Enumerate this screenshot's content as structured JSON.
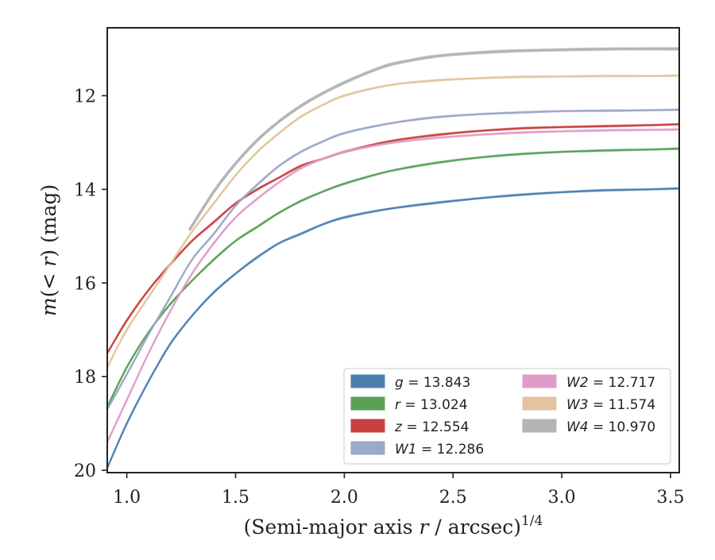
{
  "chart_data": {
    "type": "line",
    "xlabel": "(Semi-major axis r / arcsec)^1/4",
    "ylabel": "m(< r) (mag)",
    "xlim": [
      0.91,
      3.54
    ],
    "ylim": [
      20.05,
      10.55
    ],
    "y_inverted": true,
    "grid": false,
    "legend_position": "lower-right",
    "xticks": [
      "1.0",
      "1.5",
      "2.0",
      "2.5",
      "3.0",
      "3.5"
    ],
    "yticks": [
      "12",
      "14",
      "16",
      "18",
      "20"
    ],
    "series": [
      {
        "name": "g = 13.843",
        "color": "#4c7fb0",
        "x_start": 0.91,
        "points": [
          [
            0.91,
            19.95
          ],
          [
            1.0,
            19.0
          ],
          [
            1.1,
            18.1
          ],
          [
            1.2,
            17.3
          ],
          [
            1.3,
            16.7
          ],
          [
            1.4,
            16.2
          ],
          [
            1.5,
            15.8
          ],
          [
            1.6,
            15.45
          ],
          [
            1.7,
            15.15
          ],
          [
            1.8,
            14.95
          ],
          [
            1.9,
            14.75
          ],
          [
            2.0,
            14.6
          ],
          [
            2.2,
            14.42
          ],
          [
            2.4,
            14.3
          ],
          [
            2.6,
            14.2
          ],
          [
            2.8,
            14.12
          ],
          [
            3.0,
            14.06
          ],
          [
            3.2,
            14.02
          ],
          [
            3.4,
            14.0
          ],
          [
            3.54,
            13.98
          ]
        ]
      },
      {
        "name": "r = 13.024",
        "color": "#5aa155",
        "x_start": 0.91,
        "points": [
          [
            0.91,
            18.65
          ],
          [
            1.0,
            17.8
          ],
          [
            1.1,
            17.05
          ],
          [
            1.2,
            16.45
          ],
          [
            1.3,
            15.95
          ],
          [
            1.4,
            15.5
          ],
          [
            1.5,
            15.1
          ],
          [
            1.6,
            14.8
          ],
          [
            1.7,
            14.5
          ],
          [
            1.8,
            14.25
          ],
          [
            1.9,
            14.05
          ],
          [
            2.0,
            13.88
          ],
          [
            2.2,
            13.62
          ],
          [
            2.4,
            13.45
          ],
          [
            2.6,
            13.33
          ],
          [
            2.8,
            13.25
          ],
          [
            3.0,
            13.2
          ],
          [
            3.2,
            13.17
          ],
          [
            3.4,
            13.15
          ],
          [
            3.54,
            13.13
          ]
        ]
      },
      {
        "name": "z = 12.554",
        "color": "#c84040",
        "x_start": 0.91,
        "points": [
          [
            0.91,
            17.5
          ],
          [
            1.0,
            16.8
          ],
          [
            1.1,
            16.15
          ],
          [
            1.2,
            15.6
          ],
          [
            1.3,
            15.1
          ],
          [
            1.4,
            14.7
          ],
          [
            1.5,
            14.3
          ],
          [
            1.6,
            14.0
          ],
          [
            1.7,
            13.75
          ],
          [
            1.8,
            13.5
          ],
          [
            1.9,
            13.35
          ],
          [
            2.0,
            13.2
          ],
          [
            2.2,
            12.98
          ],
          [
            2.4,
            12.85
          ],
          [
            2.6,
            12.76
          ],
          [
            2.8,
            12.7
          ],
          [
            3.0,
            12.67
          ],
          [
            3.2,
            12.65
          ],
          [
            3.4,
            12.63
          ],
          [
            3.54,
            12.61
          ]
        ]
      },
      {
        "name": "W1 = 12.286",
        "color": "#9aa8c9",
        "x_start": 0.91,
        "points": [
          [
            0.91,
            18.7
          ],
          [
            1.0,
            17.95
          ],
          [
            1.1,
            17.1
          ],
          [
            1.2,
            16.3
          ],
          [
            1.3,
            15.5
          ],
          [
            1.4,
            14.95
          ],
          [
            1.5,
            14.35
          ],
          [
            1.6,
            13.9
          ],
          [
            1.7,
            13.5
          ],
          [
            1.8,
            13.2
          ],
          [
            1.9,
            12.98
          ],
          [
            2.0,
            12.8
          ],
          [
            2.2,
            12.6
          ],
          [
            2.4,
            12.47
          ],
          [
            2.6,
            12.4
          ],
          [
            2.8,
            12.36
          ],
          [
            3.0,
            12.33
          ],
          [
            3.2,
            12.32
          ],
          [
            3.4,
            12.31
          ],
          [
            3.54,
            12.3
          ]
        ]
      },
      {
        "name": "W2 = 12.717",
        "color": "#e09cc8",
        "x_start": 0.91,
        "points": [
          [
            0.91,
            19.4
          ],
          [
            1.0,
            18.5
          ],
          [
            1.1,
            17.5
          ],
          [
            1.2,
            16.6
          ],
          [
            1.3,
            15.8
          ],
          [
            1.4,
            15.15
          ],
          [
            1.5,
            14.6
          ],
          [
            1.6,
            14.2
          ],
          [
            1.7,
            13.85
          ],
          [
            1.8,
            13.55
          ],
          [
            1.9,
            13.35
          ],
          [
            2.0,
            13.2
          ],
          [
            2.2,
            13.02
          ],
          [
            2.4,
            12.91
          ],
          [
            2.6,
            12.84
          ],
          [
            2.8,
            12.79
          ],
          [
            3.0,
            12.76
          ],
          [
            3.2,
            12.74
          ],
          [
            3.4,
            12.73
          ],
          [
            3.54,
            12.72
          ]
        ]
      },
      {
        "name": "W3 = 11.574",
        "color": "#e2c49e",
        "x_start": 0.91,
        "points": [
          [
            0.91,
            17.8
          ],
          [
            1.0,
            17.0
          ],
          [
            1.1,
            16.3
          ],
          [
            1.2,
            15.6
          ],
          [
            1.3,
            14.9
          ],
          [
            1.4,
            14.3
          ],
          [
            1.5,
            13.7
          ],
          [
            1.6,
            13.2
          ],
          [
            1.7,
            12.8
          ],
          [
            1.8,
            12.45
          ],
          [
            1.9,
            12.2
          ],
          [
            2.0,
            12.0
          ],
          [
            2.2,
            11.78
          ],
          [
            2.4,
            11.68
          ],
          [
            2.6,
            11.63
          ],
          [
            2.8,
            11.6
          ],
          [
            3.0,
            11.59
          ],
          [
            3.2,
            11.58
          ],
          [
            3.4,
            11.58
          ],
          [
            3.54,
            11.57
          ]
        ]
      },
      {
        "name": "W4 = 10.970",
        "color": "#b4b4b4",
        "x_start": 1.29,
        "points": [
          [
            1.29,
            14.85
          ],
          [
            1.4,
            14.05
          ],
          [
            1.5,
            13.45
          ],
          [
            1.6,
            12.95
          ],
          [
            1.7,
            12.55
          ],
          [
            1.8,
            12.22
          ],
          [
            1.9,
            11.95
          ],
          [
            2.0,
            11.72
          ],
          [
            2.1,
            11.52
          ],
          [
            2.2,
            11.35
          ],
          [
            2.3,
            11.25
          ],
          [
            2.4,
            11.17
          ],
          [
            2.5,
            11.12
          ],
          [
            2.7,
            11.06
          ],
          [
            2.9,
            11.03
          ],
          [
            3.1,
            11.01
          ],
          [
            3.3,
            11.0
          ],
          [
            3.54,
            11.0
          ]
        ]
      }
    ]
  }
}
